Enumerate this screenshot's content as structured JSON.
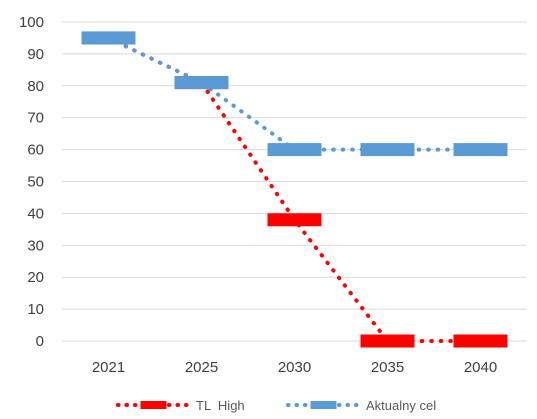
{
  "chart_data": {
    "type": "line",
    "categories": [
      "2021",
      "2025",
      "2030",
      "2035",
      "2040"
    ],
    "ylim": [
      0,
      100
    ],
    "yticks": [
      0,
      10,
      20,
      30,
      40,
      50,
      60,
      70,
      80,
      90,
      100
    ],
    "grid": true,
    "legend_position": "bottom",
    "series": [
      {
        "name": "TL  High",
        "values": [
          95,
          81,
          38,
          0,
          0
        ],
        "color": "#ff0000",
        "line_style": "dotted",
        "marker": "dash"
      },
      {
        "name": "Aktualny cel",
        "values": [
          95,
          81,
          60,
          60,
          60
        ],
        "color": "#5b9bd5",
        "line_style": "dotted",
        "marker": "dash"
      }
    ]
  }
}
